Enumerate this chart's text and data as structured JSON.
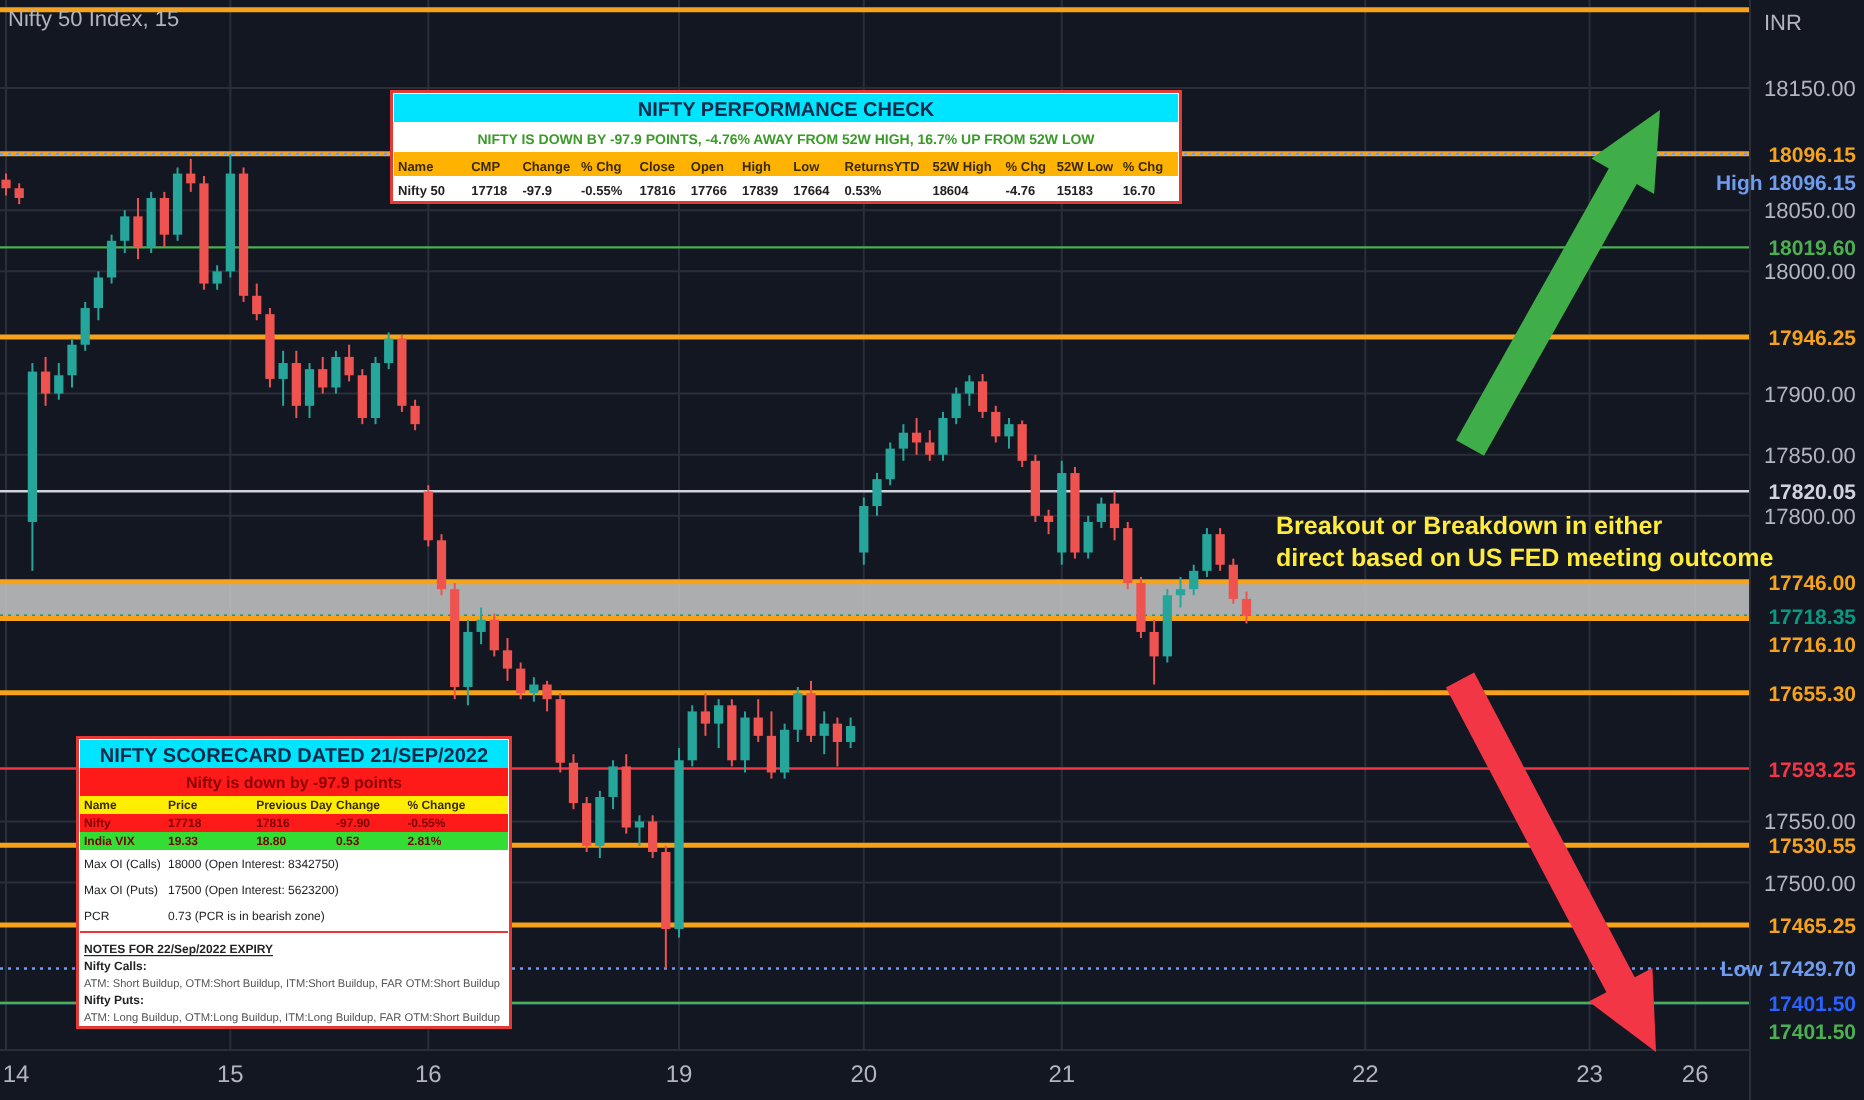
{
  "chart_data": [
    {
      "type": "candlestick",
      "title": "Nifty 50 Index, 15",
      "ylabel": "INR",
      "categories": [
        "14",
        null,
        null,
        null,
        null,
        null,
        null,
        null,
        null,
        null,
        null,
        null,
        null,
        null,
        null,
        null,
        null,
        "15",
        null,
        null,
        null,
        null,
        null,
        null,
        null,
        null,
        null,
        null,
        null,
        null,
        null,
        null,
        "16",
        null,
        null,
        null,
        null,
        null,
        null,
        null,
        null,
        null,
        null,
        null,
        null,
        null,
        null,
        null,
        null,
        null,
        null,
        "19",
        null,
        null,
        null,
        null,
        null,
        null,
        null,
        null,
        null,
        null,
        null,
        null,
        null,
        "20",
        null,
        null,
        null,
        null,
        null,
        null,
        null,
        null,
        null,
        null,
        null,
        null,
        null,
        null,
        "21",
        null,
        null,
        null,
        null,
        null,
        null,
        null,
        null,
        null,
        null,
        null,
        null,
        null,
        null,
        null,
        null,
        null,
        null,
        null,
        null,
        null,
        null,
        "22",
        null,
        null,
        null,
        null,
        null,
        null,
        null,
        null,
        null,
        null,
        null,
        null,
        null,
        null,
        null,
        null,
        "23",
        null,
        null,
        null,
        null,
        null,
        null,
        null,
        "26",
        null,
        null,
        null,
        null
      ],
      "ohlc": [
        [
          18075,
          18080,
          18062,
          18068
        ],
        [
          18068,
          18072,
          18055,
          18060
        ],
        [
          17795,
          17925,
          17755,
          17918
        ],
        [
          17918,
          17930,
          17890,
          17900
        ],
        [
          17900,
          17925,
          17895,
          17915
        ],
        [
          17915,
          17945,
          17905,
          17940
        ],
        [
          17940,
          17975,
          17935,
          17970
        ],
        [
          17970,
          18000,
          17960,
          17995
        ],
        [
          17995,
          18030,
          17990,
          18025
        ],
        [
          18025,
          18050,
          18015,
          18045
        ],
        [
          18045,
          18060,
          18010,
          18020
        ],
        [
          18020,
          18065,
          18015,
          18060
        ],
        [
          18060,
          18065,
          18020,
          18030
        ],
        [
          18030,
          18085,
          18025,
          18080
        ],
        [
          18080,
          18092,
          18065,
          18072
        ],
        [
          18072,
          18078,
          17985,
          17990
        ],
        [
          17990,
          18005,
          17985,
          18000
        ],
        [
          18000,
          18096.15,
          17995,
          18080
        ],
        [
          18080,
          18085,
          17975,
          17980
        ],
        [
          17980,
          17990,
          17960,
          17965
        ],
        [
          17965,
          17970,
          17905,
          17912
        ],
        [
          17912,
          17935,
          17890,
          17925
        ],
        [
          17925,
          17935,
          17880,
          17890
        ],
        [
          17890,
          17925,
          17880,
          17920
        ],
        [
          17920,
          17930,
          17900,
          17905
        ],
        [
          17905,
          17935,
          17900,
          17930
        ],
        [
          17930,
          17940,
          17910,
          17915
        ],
        [
          17915,
          17920,
          17875,
          17880
        ],
        [
          17880,
          17930,
          17875,
          17925
        ],
        [
          17925,
          17950,
          17920,
          17945
        ],
        [
          17945,
          17948,
          17885,
          17890
        ],
        [
          17890,
          17895,
          17870,
          17875
        ],
        [
          17820,
          17825,
          17775,
          17780
        ],
        [
          17780,
          17785,
          17735,
          17740
        ],
        [
          17740,
          17745,
          17650,
          17660
        ],
        [
          17660,
          17715,
          17645,
          17705
        ],
        [
          17705,
          17725,
          17695,
          17715
        ],
        [
          17715,
          17720,
          17685,
          17690
        ],
        [
          17690,
          17700,
          17665,
          17675
        ],
        [
          17675,
          17680,
          17650,
          17655
        ],
        [
          17655,
          17668,
          17648,
          17662
        ],
        [
          17662,
          17665,
          17640,
          17650
        ],
        [
          17650,
          17655,
          17590,
          17598
        ],
        [
          17598,
          17605,
          17560,
          17565
        ],
        [
          17565,
          17570,
          17525,
          17530
        ],
        [
          17530,
          17575,
          17520,
          17570
        ],
        [
          17570,
          17600,
          17560,
          17595
        ],
        [
          17595,
          17605,
          17540,
          17545
        ],
        [
          17545,
          17555,
          17530,
          17550
        ],
        [
          17550,
          17555,
          17520,
          17525
        ],
        [
          17525,
          17530,
          17429.7,
          17462
        ],
        [
          17462,
          17610,
          17455,
          17600
        ],
        [
          17600,
          17645,
          17595,
          17640
        ],
        [
          17640,
          17655,
          17620,
          17630
        ],
        [
          17630,
          17650,
          17610,
          17645
        ],
        [
          17645,
          17650,
          17595,
          17600
        ],
        [
          17600,
          17640,
          17590,
          17635
        ],
        [
          17635,
          17650,
          17615,
          17620
        ],
        [
          17620,
          17640,
          17585,
          17590
        ],
        [
          17590,
          17630,
          17585,
          17625
        ],
        [
          17625,
          17660,
          17615,
          17655
        ],
        [
          17655,
          17665,
          17615,
          17620
        ],
        [
          17620,
          17640,
          17605,
          17630
        ],
        [
          17630,
          17635,
          17595,
          17615
        ],
        [
          17615,
          17635,
          17610,
          17628
        ],
        [
          17770,
          17815,
          17760,
          17808
        ],
        [
          17808,
          17835,
          17800,
          17830
        ],
        [
          17830,
          17860,
          17825,
          17855
        ],
        [
          17855,
          17875,
          17845,
          17868
        ],
        [
          17868,
          17880,
          17850,
          17860
        ],
        [
          17860,
          17870,
          17845,
          17850
        ],
        [
          17850,
          17885,
          17845,
          17880
        ],
        [
          17880,
          17905,
          17875,
          17900
        ],
        [
          17900,
          17915,
          17890,
          17910
        ],
        [
          17910,
          17916,
          17880,
          17885
        ],
        [
          17885,
          17890,
          17860,
          17865
        ],
        [
          17865,
          17880,
          17855,
          17875
        ],
        [
          17875,
          17878,
          17840,
          17845
        ],
        [
          17845,
          17850,
          17795,
          17800
        ],
        [
          17800,
          17805,
          17785,
          17795
        ],
        [
          17770,
          17845,
          17760,
          17835
        ],
        [
          17835,
          17840,
          17765,
          17770
        ],
        [
          17770,
          17800,
          17765,
          17795
        ],
        [
          17795,
          17815,
          17790,
          17810
        ],
        [
          17810,
          17820,
          17780,
          17790
        ],
        [
          17790,
          17795,
          17740,
          17745
        ],
        [
          17745,
          17750,
          17700,
          17705
        ],
        [
          17705,
          17715,
          17662,
          17685
        ],
        [
          17685,
          17740,
          17680,
          17735
        ],
        [
          17735,
          17750,
          17725,
          17740
        ],
        [
          17740,
          17760,
          17735,
          17755
        ],
        [
          17755,
          17790,
          17750,
          17785
        ],
        [
          17785,
          17790,
          17755,
          17760
        ],
        [
          17760,
          17765,
          17728,
          17732
        ],
        [
          17732,
          17738,
          17712,
          17718.35
        ],
        null,
        null,
        null,
        null,
        null,
        null,
        null,
        null,
        null,
        null,
        null,
        null,
        null,
        null,
        null,
        null,
        null,
        null,
        null,
        null,
        null,
        null,
        null,
        null,
        null,
        null,
        null,
        null,
        null,
        null,
        null,
        null,
        null,
        null,
        null,
        null,
        null,
        null
      ],
      "ylim": [
        17363,
        18222
      ],
      "yticks": [
        {
          "value": 18150,
          "label": "18150.00"
        },
        {
          "value": 18050,
          "label": "18050.00"
        },
        {
          "value": 18000,
          "label": "18000.00"
        },
        {
          "value": 17900,
          "label": "17900.00"
        },
        {
          "value": 17850,
          "label": "17850.00"
        },
        {
          "value": 17800,
          "label": "17800.00"
        },
        {
          "value": 17550,
          "label": "17550.00"
        },
        {
          "value": 17500,
          "label": "17500.00"
        }
      ],
      "grid": true,
      "ref_lines": [
        {
          "axis": "y",
          "value": 18214,
          "label": null,
          "color": "#f7a21b"
        },
        {
          "axis": "y",
          "value": 18096.15,
          "label": "18096.15",
          "color": "#f7a21b"
        },
        {
          "axis": "y",
          "value": 18096.15,
          "label": "High 18096.15",
          "color": "#6f9cf0",
          "line_style": "dotted"
        },
        {
          "axis": "y",
          "value": 18019.6,
          "label": "18019.60",
          "color": "#4caf50"
        },
        {
          "axis": "y",
          "value": 17946.25,
          "label": "17946.25",
          "color": "#f7a21b"
        },
        {
          "axis": "y",
          "value": 17820.05,
          "label": "17820.05",
          "color": "#d1d4dc"
        },
        {
          "axis": "y",
          "value": 17746,
          "label": "17746.00",
          "color": "#f7a21b"
        },
        {
          "axis": "y",
          "value": 17718.35,
          "label": "17718.35",
          "color": "#089981",
          "line_style": "dotted"
        },
        {
          "axis": "y",
          "value": 17716.1,
          "label": "17716.10",
          "color": "#f7a21b"
        },
        {
          "axis": "y",
          "value": 17655.3,
          "label": "17655.30",
          "color": "#f7a21b"
        },
        {
          "axis": "y",
          "value": 17593.25,
          "label": "17593.25",
          "color": "#f23645"
        },
        {
          "axis": "y",
          "value": 17530.55,
          "label": "17530.55",
          "color": "#f7a21b"
        },
        {
          "axis": "y",
          "value": 17465.25,
          "label": "17465.25",
          "color": "#f7a21b"
        },
        {
          "axis": "y",
          "value": 17429.7,
          "label": "Low 17429.70",
          "color": "#6f9cf0",
          "line_style": "dotted"
        },
        {
          "axis": "y",
          "value": 17401.5,
          "label": "17401.50",
          "color": "#2962ff"
        },
        {
          "axis": "y",
          "value": 17401.5,
          "label": "17401.50",
          "color": "#4caf50"
        }
      ],
      "bands": [
        {
          "axis": "y",
          "from": 17716.1,
          "to": 17746,
          "color": "#c8c8c8"
        }
      ],
      "annotations": [
        "Breakout or Breakdown in either\ndirect based on US FED meeting outcome"
      ]
    },
    {
      "type": "other",
      "title": "NIFTY PERFORMANCE CHECK",
      "subtitle": "NIFTY IS DOWN BY -97.9 POINTS, -4.76% AWAY FROM 52W HIGH, 16.7% UP FROM 52W LOW",
      "color": "#ffb300",
      "categories": [
        "Name",
        "CMP",
        "Change",
        "% Chg",
        "Close",
        "Open",
        "High",
        "Low",
        "ReturnsYTD",
        "52W High",
        "% Chg",
        "52W Low",
        "% Chg"
      ],
      "cell_labels": [
        [
          "Nifty 50",
          "17718",
          "-97.9",
          "-0.55%",
          "17816",
          "17766",
          "17839",
          "17664",
          "0.53%",
          "18604",
          "-4.76",
          "15183",
          "16.70"
        ]
      ]
    },
    {
      "type": "other",
      "title": "NIFTY SCORECARD DATED 21/SEP/2022",
      "subtitle": "Nifty is down by -97.9 points",
      "color": "#ffee00",
      "categories": [
        "Name",
        "Price",
        "Previous Day",
        "Change",
        "% Change"
      ],
      "cell_labels": [
        [
          "Nifty",
          "17718",
          "17816",
          "-97.90",
          "-0.55%"
        ],
        [
          "India VIX",
          "19.33",
          "18.80",
          "0.53",
          "2.81%"
        ],
        [
          "Max OI (Calls)",
          "18000 (Open Interest: 8342750)"
        ],
        [
          "Max OI (Puts)",
          "17500 (Open Interest: 5623200)"
        ],
        [
          "PCR",
          "0.73 (PCR is in bearish zone)"
        ]
      ],
      "colors": [
        "#ff1a1a",
        "#33dd33",
        null,
        null,
        null
      ],
      "annotations": [
        "NOTES FOR 22/Sep/2022 EXPIRY",
        "Nifty Calls:",
        "ATM: Short Buildup, OTM:Short Buildup, ITM:Short Buildup, FAR OTM:Short Buildup",
        "Nifty Puts:",
        "ATM: Long Buildup, OTM:Long Buildup, ITM:Long Buildup, FAR OTM:Short Buildup"
      ]
    }
  ]
}
